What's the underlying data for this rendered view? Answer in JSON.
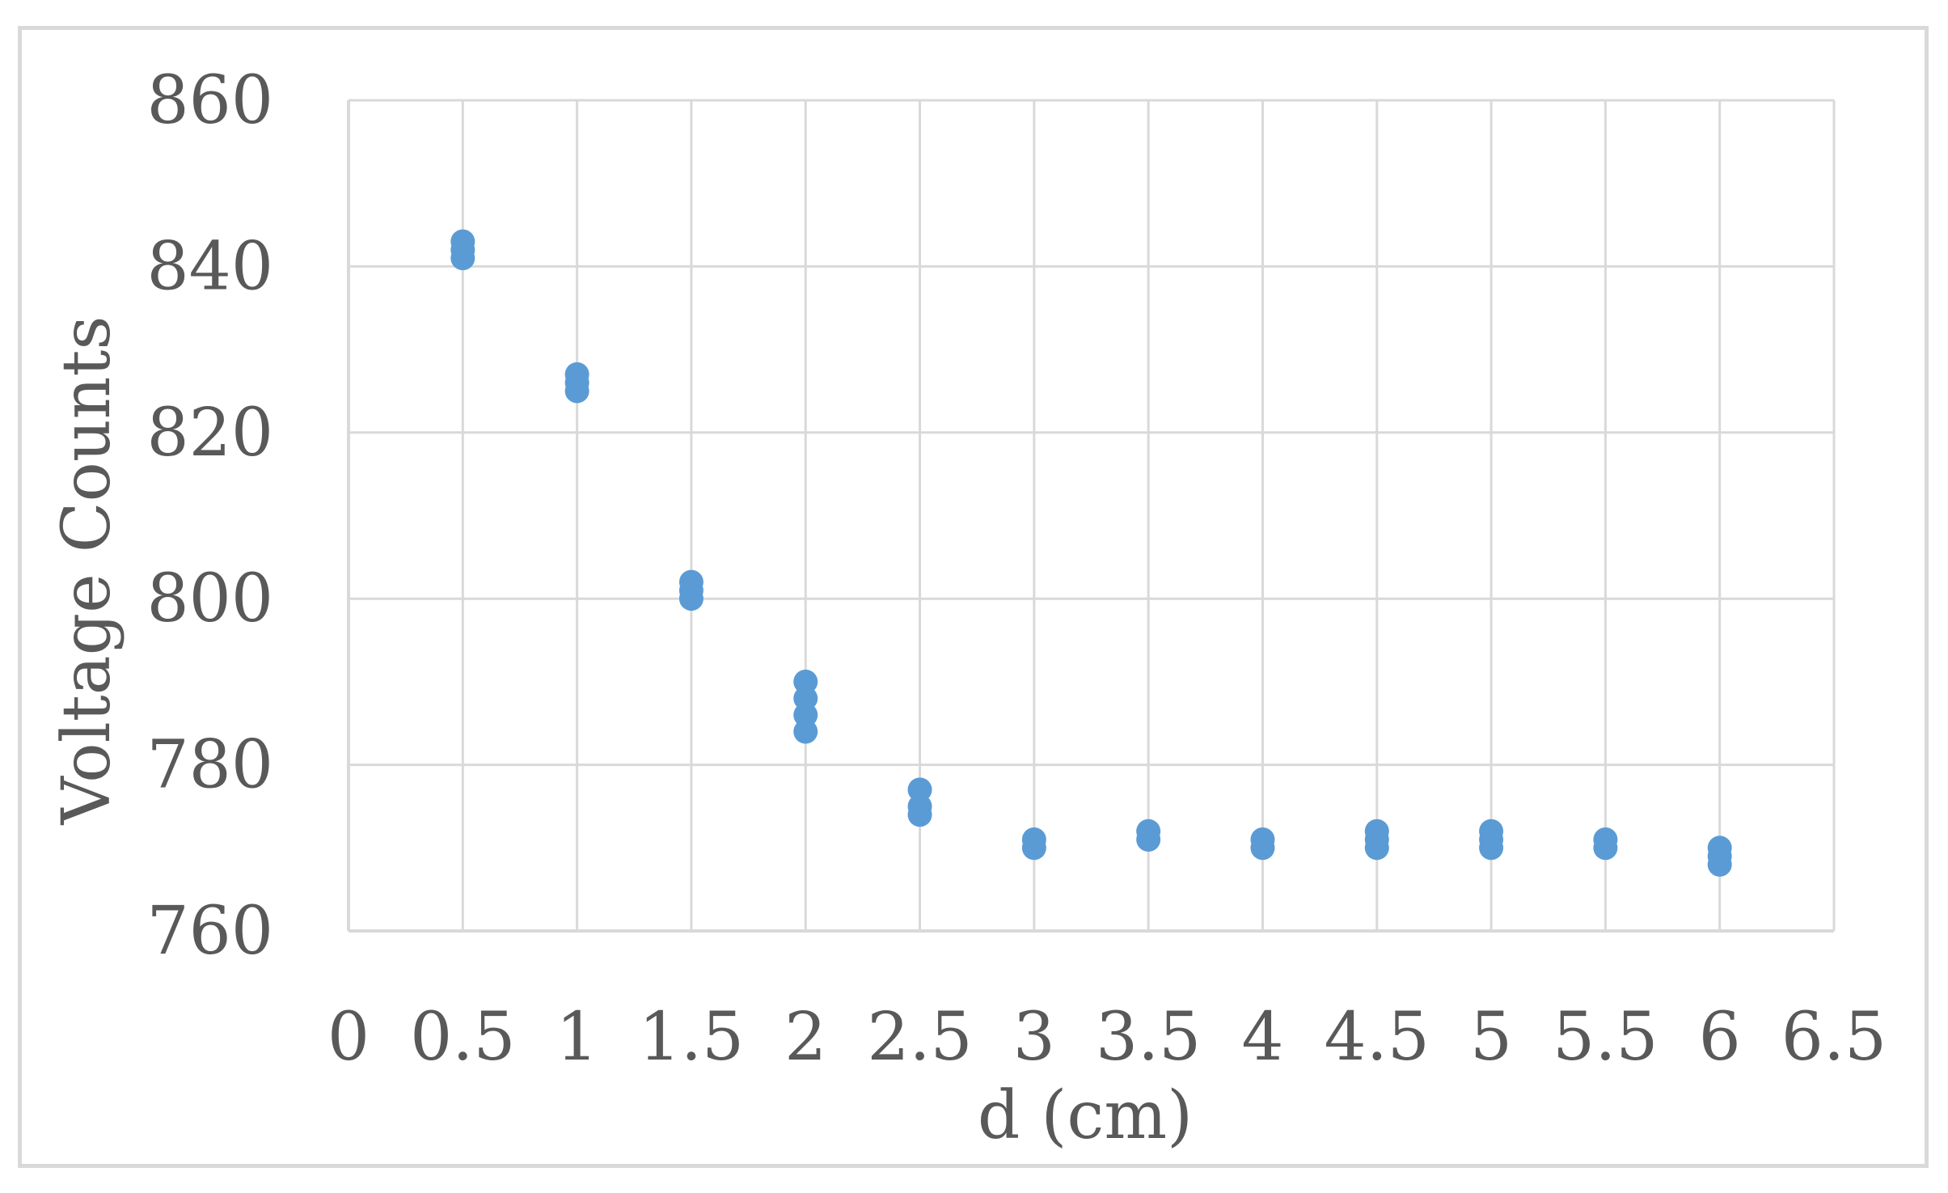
{
  "chart_data": {
    "type": "scatter",
    "title": "",
    "xlabel": "d (cm)",
    "ylabel": "Voltage Counts",
    "xlim": [
      0,
      6.5
    ],
    "ylim": [
      760,
      860
    ],
    "x_ticks": [
      0,
      0.5,
      1,
      1.5,
      2,
      2.5,
      3,
      3.5,
      4,
      4.5,
      5,
      5.5,
      6,
      6.5
    ],
    "x_tick_labels": [
      "0",
      "0.5",
      "1",
      "1.5",
      "2",
      "2.5",
      "3",
      "3.5",
      "4",
      "4.5",
      "5",
      "5.5",
      "6",
      "6.5"
    ],
    "y_ticks": [
      760,
      780,
      800,
      820,
      840,
      860
    ],
    "y_tick_labels": [
      "760",
      "780",
      "800",
      "820",
      "840",
      "860"
    ],
    "grid": true,
    "legend": "none",
    "marker_color": "#5b9bd5",
    "series": [
      {
        "points": [
          {
            "x": 0.5,
            "y": 843
          },
          {
            "x": 0.5,
            "y": 842
          },
          {
            "x": 0.5,
            "y": 841
          },
          {
            "x": 1.0,
            "y": 827
          },
          {
            "x": 1.0,
            "y": 826
          },
          {
            "x": 1.0,
            "y": 825
          },
          {
            "x": 1.5,
            "y": 802
          },
          {
            "x": 1.5,
            "y": 801
          },
          {
            "x": 1.5,
            "y": 800
          },
          {
            "x": 2.0,
            "y": 790
          },
          {
            "x": 2.0,
            "y": 788
          },
          {
            "x": 2.0,
            "y": 786
          },
          {
            "x": 2.0,
            "y": 784
          },
          {
            "x": 2.5,
            "y": 777
          },
          {
            "x": 2.5,
            "y": 775
          },
          {
            "x": 2.5,
            "y": 774
          },
          {
            "x": 3.0,
            "y": 771
          },
          {
            "x": 3.0,
            "y": 770
          },
          {
            "x": 3.5,
            "y": 772
          },
          {
            "x": 3.5,
            "y": 771
          },
          {
            "x": 4.0,
            "y": 771
          },
          {
            "x": 4.0,
            "y": 770
          },
          {
            "x": 4.5,
            "y": 772
          },
          {
            "x": 4.5,
            "y": 771
          },
          {
            "x": 4.5,
            "y": 770
          },
          {
            "x": 5.0,
            "y": 772
          },
          {
            "x": 5.0,
            "y": 771
          },
          {
            "x": 5.0,
            "y": 770
          },
          {
            "x": 5.5,
            "y": 771
          },
          {
            "x": 5.5,
            "y": 770
          },
          {
            "x": 6.0,
            "y": 770
          },
          {
            "x": 6.0,
            "y": 769
          },
          {
            "x": 6.0,
            "y": 768
          }
        ]
      }
    ]
  }
}
